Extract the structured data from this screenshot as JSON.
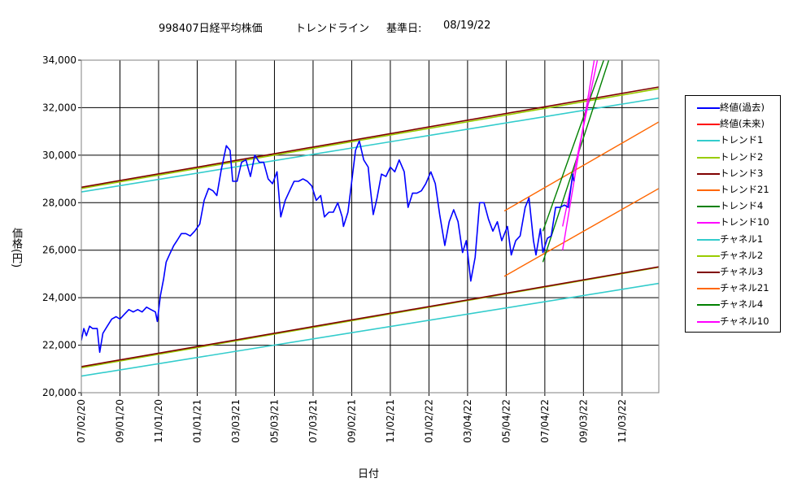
{
  "header": {
    "code_name": "998407日経平均株価",
    "chart_name": "トレンドライン",
    "base_label": "基準日:",
    "base_date": "08/19/22"
  },
  "chart_data": {
    "type": "line",
    "title": "998407日経平均株価 トレンドライン 基準日: 08/19/22",
    "xlabel": "日付",
    "ylabel": "価格(円)",
    "ylim": [
      20000,
      34000
    ],
    "yticks": [
      20000,
      22000,
      24000,
      26000,
      28000,
      30000,
      32000,
      34000
    ],
    "ytick_labels": [
      "20,000",
      "22,000",
      "24,000",
      "26,000",
      "28,000",
      "30,000",
      "32,000",
      "34,000"
    ],
    "xlim": [
      "2020-07-02",
      "2022-12-31"
    ],
    "xticks": [
      "2020-07-02",
      "2020-09-01",
      "2020-11-01",
      "2021-01-01",
      "2021-03-03",
      "2021-05-03",
      "2021-07-03",
      "2021-09-02",
      "2021-11-02",
      "2022-01-02",
      "2022-03-04",
      "2022-05-04",
      "2022-07-04",
      "2022-09-03",
      "2022-11-03"
    ],
    "xtick_labels": [
      "07/02/20",
      "09/01/20",
      "11/01/20",
      "01/01/21",
      "03/03/21",
      "05/03/21",
      "07/03/21",
      "09/02/21",
      "11/02/21",
      "01/02/22",
      "03/04/22",
      "05/04/22",
      "07/04/22",
      "09/03/22",
      "11/03/22"
    ],
    "grid": true,
    "legend_position": "right",
    "series": [
      {
        "name": "終値(過去)",
        "color": "#0000ff",
        "width": 1.6,
        "points": [
          [
            "2020-07-02",
            22200
          ],
          [
            "2020-07-06",
            22700
          ],
          [
            "2020-07-10",
            22400
          ],
          [
            "2020-07-15",
            22800
          ],
          [
            "2020-07-20",
            22700
          ],
          [
            "2020-07-27",
            22700
          ],
          [
            "2020-07-31",
            21700
          ],
          [
            "2020-08-05",
            22500
          ],
          [
            "2020-08-12",
            22800
          ],
          [
            "2020-08-19",
            23100
          ],
          [
            "2020-08-26",
            23200
          ],
          [
            "2020-09-01",
            23100
          ],
          [
            "2020-09-08",
            23300
          ],
          [
            "2020-09-15",
            23500
          ],
          [
            "2020-09-22",
            23400
          ],
          [
            "2020-09-29",
            23500
          ],
          [
            "2020-10-06",
            23400
          ],
          [
            "2020-10-13",
            23600
          ],
          [
            "2020-10-20",
            23500
          ],
          [
            "2020-10-27",
            23400
          ],
          [
            "2020-10-30",
            23000
          ],
          [
            "2020-11-04",
            24100
          ],
          [
            "2020-11-09",
            24800
          ],
          [
            "2020-11-13",
            25500
          ],
          [
            "2020-11-18",
            25800
          ],
          [
            "2020-11-25",
            26200
          ],
          [
            "2020-11-30",
            26400
          ],
          [
            "2020-12-07",
            26700
          ],
          [
            "2020-12-14",
            26700
          ],
          [
            "2020-12-21",
            26600
          ],
          [
            "2020-12-28",
            26800
          ],
          [
            "2021-01-05",
            27100
          ],
          [
            "2021-01-12",
            28100
          ],
          [
            "2021-01-19",
            28600
          ],
          [
            "2021-01-26",
            28500
          ],
          [
            "2021-02-01",
            28300
          ],
          [
            "2021-02-08",
            29400
          ],
          [
            "2021-02-16",
            30400
          ],
          [
            "2021-02-22",
            30200
          ],
          [
            "2021-02-26",
            28900
          ],
          [
            "2021-03-05",
            28900
          ],
          [
            "2021-03-12",
            29700
          ],
          [
            "2021-03-19",
            29800
          ],
          [
            "2021-03-26",
            29100
          ],
          [
            "2021-04-02",
            30000
          ],
          [
            "2021-04-09",
            29700
          ],
          [
            "2021-04-16",
            29700
          ],
          [
            "2021-04-23",
            29000
          ],
          [
            "2021-04-30",
            28800
          ],
          [
            "2021-05-07",
            29300
          ],
          [
            "2021-05-13",
            27400
          ],
          [
            "2021-05-20",
            28100
          ],
          [
            "2021-05-27",
            28500
          ],
          [
            "2021-06-03",
            28900
          ],
          [
            "2021-06-10",
            28900
          ],
          [
            "2021-06-17",
            29000
          ],
          [
            "2021-06-24",
            28900
          ],
          [
            "2021-07-01",
            28700
          ],
          [
            "2021-07-08",
            28100
          ],
          [
            "2021-07-15",
            28300
          ],
          [
            "2021-07-21",
            27400
          ],
          [
            "2021-07-28",
            27600
          ],
          [
            "2021-08-04",
            27600
          ],
          [
            "2021-08-11",
            28000
          ],
          [
            "2021-08-18",
            27400
          ],
          [
            "2021-08-20",
            27000
          ],
          [
            "2021-08-27",
            27600
          ],
          [
            "2021-09-03",
            29100
          ],
          [
            "2021-09-08",
            30200
          ],
          [
            "2021-09-14",
            30600
          ],
          [
            "2021-09-21",
            29800
          ],
          [
            "2021-09-28",
            29500
          ],
          [
            "2021-10-01",
            28700
          ],
          [
            "2021-10-06",
            27500
          ],
          [
            "2021-10-12",
            28200
          ],
          [
            "2021-10-19",
            29200
          ],
          [
            "2021-10-26",
            29100
          ],
          [
            "2021-11-02",
            29500
          ],
          [
            "2021-11-09",
            29300
          ],
          [
            "2021-11-16",
            29800
          ],
          [
            "2021-11-24",
            29300
          ],
          [
            "2021-11-30",
            27800
          ],
          [
            "2021-12-07",
            28400
          ],
          [
            "2021-12-14",
            28400
          ],
          [
            "2021-12-21",
            28500
          ],
          [
            "2021-12-28",
            28800
          ],
          [
            "2022-01-05",
            29300
          ],
          [
            "2022-01-12",
            28800
          ],
          [
            "2022-01-19",
            27500
          ],
          [
            "2022-01-27",
            26200
          ],
          [
            "2022-02-03",
            27200
          ],
          [
            "2022-02-10",
            27700
          ],
          [
            "2022-02-17",
            27200
          ],
          [
            "2022-02-24",
            25900
          ],
          [
            "2022-03-02",
            26400
          ],
          [
            "2022-03-09",
            24700
          ],
          [
            "2022-03-16",
            25700
          ],
          [
            "2022-03-23",
            28000
          ],
          [
            "2022-03-30",
            28000
          ],
          [
            "2022-04-06",
            27300
          ],
          [
            "2022-04-13",
            26800
          ],
          [
            "2022-04-20",
            27200
          ],
          [
            "2022-04-27",
            26400
          ],
          [
            "2022-05-06",
            27000
          ],
          [
            "2022-05-12",
            25800
          ],
          [
            "2022-05-19",
            26400
          ],
          [
            "2022-05-26",
            26600
          ],
          [
            "2022-06-03",
            27800
          ],
          [
            "2022-06-09",
            28200
          ],
          [
            "2022-06-16",
            26400
          ],
          [
            "2022-06-20",
            25800
          ],
          [
            "2022-06-27",
            26900
          ],
          [
            "2022-07-01",
            25900
          ],
          [
            "2022-07-08",
            26500
          ],
          [
            "2022-07-14",
            26600
          ],
          [
            "2022-07-21",
            27800
          ],
          [
            "2022-07-28",
            27800
          ],
          [
            "2022-08-04",
            27900
          ],
          [
            "2022-08-10",
            27800
          ],
          [
            "2022-08-17",
            29200
          ],
          [
            "2022-08-19",
            28900
          ]
        ]
      },
      {
        "name": "終値(未来)",
        "color": "#ff0000",
        "width": 1.2,
        "points": []
      },
      {
        "name": "トレンド1",
        "color": "#33cccc",
        "width": 1.6,
        "points": [
          [
            "2020-07-02",
            28450
          ],
          [
            "2022-12-31",
            32400
          ]
        ]
      },
      {
        "name": "トレンド2",
        "color": "#99cc00",
        "width": 1.6,
        "points": [
          [
            "2020-07-02",
            28600
          ],
          [
            "2022-12-31",
            32800
          ]
        ]
      },
      {
        "name": "トレンド3",
        "color": "#800000",
        "width": 1.6,
        "points": [
          [
            "2020-07-02",
            28650
          ],
          [
            "2022-12-31",
            32870
          ]
        ]
      },
      {
        "name": "トレンド21",
        "color": "#ff6600",
        "width": 1.4,
        "points": [
          [
            "2022-05-01",
            27650
          ],
          [
            "2022-12-31",
            31400
          ]
        ]
      },
      {
        "name": "トレンド4",
        "color": "#008000",
        "width": 1.4,
        "points": [
          [
            "2022-07-01",
            26800
          ],
          [
            "2022-10-05",
            34000
          ]
        ]
      },
      {
        "name": "トレンド10",
        "color": "#ff00ff",
        "width": 1.4,
        "points": [
          [
            "2022-08-01",
            27000
          ],
          [
            "2022-09-25",
            34000
          ]
        ]
      },
      {
        "name": "チャネル1",
        "color": "#33cccc",
        "width": 1.6,
        "points": [
          [
            "2020-07-02",
            20700
          ],
          [
            "2022-12-31",
            24600
          ]
        ]
      },
      {
        "name": "チャネル2",
        "color": "#99cc00",
        "width": 1.6,
        "points": [
          [
            "2020-07-02",
            21050
          ],
          [
            "2022-12-31",
            25280
          ]
        ]
      },
      {
        "name": "チャネル3",
        "color": "#800000",
        "width": 1.6,
        "points": [
          [
            "2020-07-02",
            21100
          ],
          [
            "2022-12-31",
            25300
          ]
        ]
      },
      {
        "name": "チャネル21",
        "color": "#ff6600",
        "width": 1.4,
        "points": [
          [
            "2022-05-01",
            24900
          ],
          [
            "2022-12-31",
            28600
          ]
        ]
      },
      {
        "name": "チャネル4",
        "color": "#008000",
        "width": 1.4,
        "points": [
          [
            "2022-07-01",
            25500
          ],
          [
            "2022-10-13",
            34000
          ]
        ]
      },
      {
        "name": "チャネル10",
        "color": "#ff00ff",
        "width": 1.4,
        "points": [
          [
            "2022-08-01",
            26000
          ],
          [
            "2022-09-20",
            34000
          ]
        ]
      }
    ]
  }
}
